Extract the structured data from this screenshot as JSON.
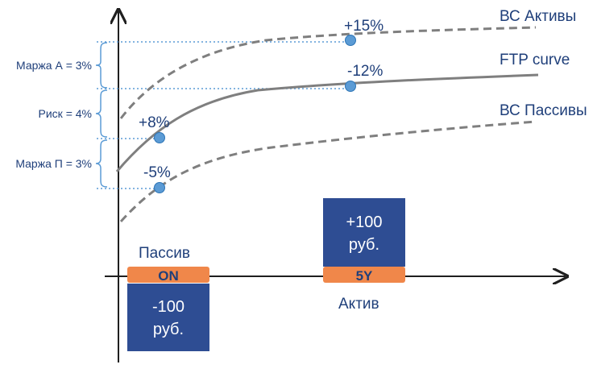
{
  "curves": {
    "bc_assets": "ВС Активы",
    "ftp": "FTP curve",
    "bc_liabilities": "ВС Пассивы"
  },
  "points": {
    "assets_5y": "+15%",
    "ftp_5y": "-12%",
    "ftp_on": "+8%",
    "liab_on": "-5%"
  },
  "brackets": {
    "margin_a": "Маржа А = 3%",
    "risk": "Риск = 4%",
    "margin_p": "Маржа П = 3%"
  },
  "liability": {
    "label": "Пассив",
    "tenor": "ON",
    "amount_line1": "-100",
    "amount_line2": "руб."
  },
  "asset": {
    "label": "Актив",
    "tenor": "5Y",
    "amount_line1": "+100",
    "amount_line2": "руб."
  },
  "colors": {
    "navy": "#2e4d93",
    "orange": "#f0874a",
    "curve": "#7f7f7f",
    "point": "#5b9bd5",
    "bracket": "#5b9bd5",
    "text": "#1f3f7a"
  }
}
